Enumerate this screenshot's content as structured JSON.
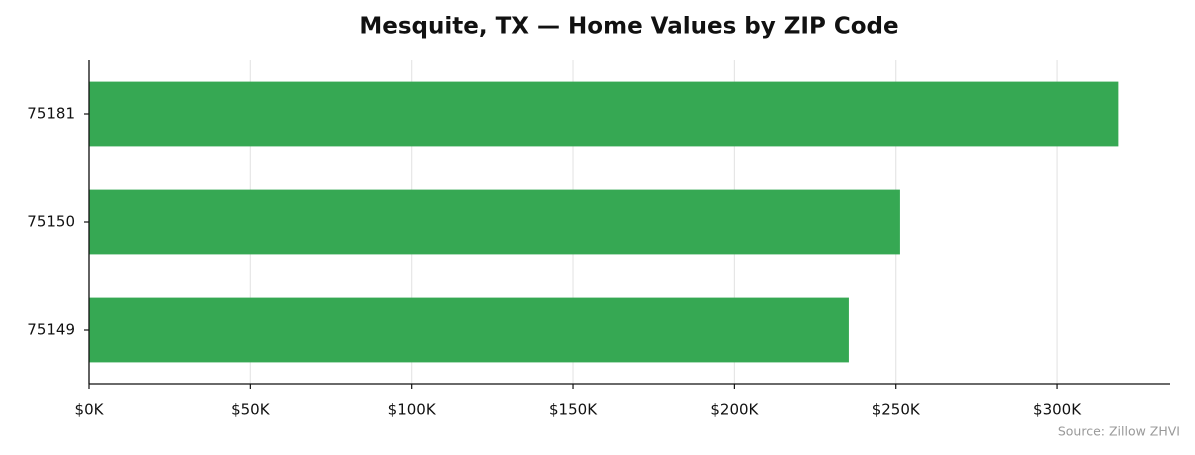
{
  "chart_data": {
    "type": "barh",
    "title": "Mesquite, TX — Home Values by ZIP Code",
    "categories": [
      "75181",
      "75150",
      "75149"
    ],
    "values": [
      319000,
      251300,
      235500
    ],
    "color": "#36a853",
    "xlim": [
      0,
      335000
    ],
    "xticks": [
      {
        "value": 0,
        "label": "$0K"
      },
      {
        "value": 50000,
        "label": "$50K"
      },
      {
        "value": 100000,
        "label": "$100K"
      },
      {
        "value": 150000,
        "label": "$150K"
      },
      {
        "value": 200000,
        "label": "$200K"
      },
      {
        "value": 250000,
        "label": "$250K"
      },
      {
        "value": 300000,
        "label": "$300K"
      }
    ],
    "grid": true,
    "source": "Source: Zillow ZHVI"
  }
}
